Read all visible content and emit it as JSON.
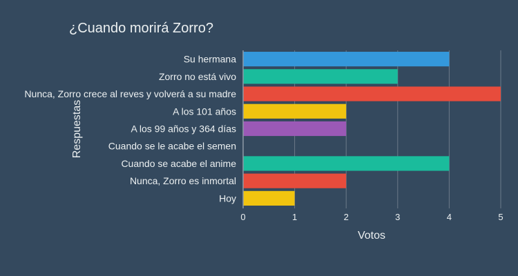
{
  "chart_data": {
    "type": "bar",
    "orientation": "horizontal",
    "title": "¿Cuando morirá Zorro?",
    "xlabel": "Votos",
    "ylabel": "Respuestas",
    "xlim": [
      0,
      5
    ],
    "xticks": [
      "0",
      "1",
      "2",
      "3",
      "4",
      "5"
    ],
    "grid": true,
    "categories": [
      "Su hermana",
      "Zorro no está vivo",
      "Nunca, Zorro crece al reves y volverá a su madre",
      "A los 101 años",
      "A los 99 años y 364 días",
      "Cuando se le acabe el semen",
      "Cuando se acabe el anime",
      "Nunca, Zorro es inmortal",
      "Hoy"
    ],
    "values": [
      4,
      3,
      5,
      2,
      2,
      0,
      4,
      2,
      1
    ],
    "colors": [
      "#3498db",
      "#1abc9c",
      "#e74c3c",
      "#f1c40f",
      "#9b59b6",
      "#34495e",
      "#1abc9c",
      "#e74c3c",
      "#f1c40f"
    ]
  }
}
